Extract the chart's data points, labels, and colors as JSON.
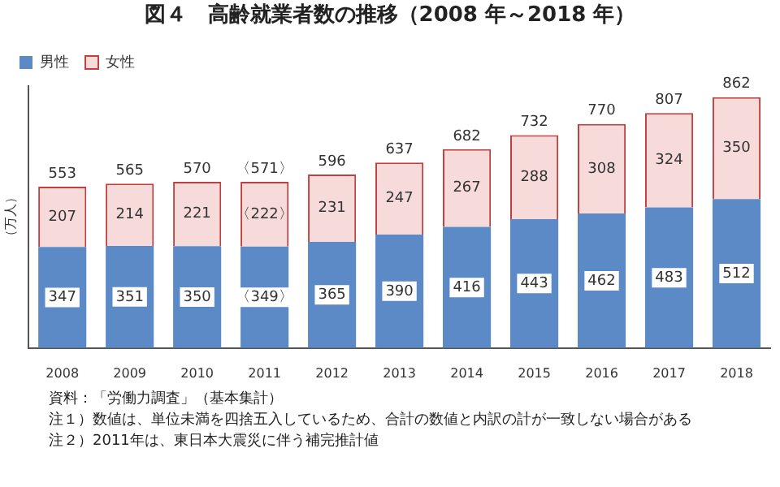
{
  "chart_data": {
    "type": "bar",
    "stacked": true,
    "title": "図４　高齢就業者数の推移（2008 年～2018 年）",
    "ylabel": "（万人）",
    "categories": [
      "2008",
      "2009",
      "2010",
      "2011",
      "2012",
      "2013",
      "2014",
      "2015",
      "2016",
      "2017",
      "2018"
    ],
    "series": [
      {
        "name": "男性",
        "color": "#5b8ac6",
        "values": [
          347,
          351,
          350,
          349,
          365,
          390,
          416,
          443,
          462,
          483,
          512
        ],
        "value_labels": [
          "347",
          "351",
          "350",
          "〈349〉",
          "365",
          "390",
          "416",
          "443",
          "462",
          "483",
          "512"
        ]
      },
      {
        "name": "女性",
        "color": "#f7dada",
        "values": [
          207,
          214,
          221,
          222,
          231,
          247,
          267,
          288,
          308,
          324,
          350
        ],
        "value_labels": [
          "207",
          "214",
          "221",
          "〈222〉",
          "231",
          "247",
          "267",
          "288",
          "308",
          "324",
          "350"
        ]
      }
    ],
    "totals": [
      "553",
      "565",
      "570",
      "〈571〉",
      "596",
      "637",
      "682",
      "732",
      "770",
      "807",
      "862"
    ],
    "tick_labels": "x",
    "grid": false,
    "legend": "top left",
    "annotations": [
      "資料：「労働力調査」（基本集計）",
      "注１）数値は、単位未満を四捨五入しているため、合計の数値と内訳の計が一致しない場合がある",
      "注２）2011年は、東日本大震災に伴う補完推計値"
    ]
  }
}
